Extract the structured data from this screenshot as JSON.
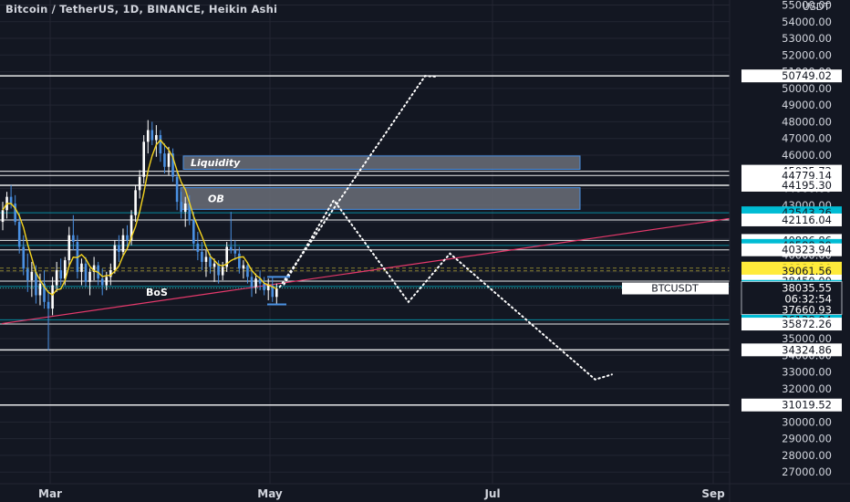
{
  "header": {
    "title": "Bitcoin / TetherUS, 1D, BINANCE, Heikin Ashi"
  },
  "colors": {
    "background": "#131722",
    "grid": "#232632",
    "text": "#d1d4dc",
    "candle_up": "#ffffff",
    "candle_down": "#4a90e2",
    "ma_line": "#f5d41f",
    "trendline": "#e5396b",
    "cyan_label": "#00bcd4",
    "yellow_label": "#ffeb3b",
    "zone": "#6b6e78"
  },
  "chart_data": {
    "type": "candlestick",
    "symbol": "BTCUSDT",
    "chart_style": "Heikin Ashi",
    "interval": "1D",
    "exchange": "BINANCE",
    "currency_label": "USDT",
    "y_axis": {
      "ticks": [
        55000,
        54000,
        53000,
        52000,
        51000,
        50000,
        49000,
        48000,
        47000,
        46000,
        45000,
        44000,
        43000,
        42000,
        41000,
        40000,
        39000,
        38000,
        37000,
        36000,
        35000,
        34000,
        33000,
        32000,
        31000,
        30000,
        29000,
        28000,
        27000
      ],
      "tick_labels": [
        "55000.00",
        "54000.00",
        "53000.00",
        "52000.00",
        "51000.00",
        "50000.00",
        "49000.00",
        "48000.00",
        "47000.00",
        "46000.00",
        "45000.00",
        "44000.00",
        "43000.00",
        "42000.00",
        "41000.00",
        "40000.00",
        "39000.00",
        "38000.00",
        "37000.00",
        "36000.00",
        "35000.00",
        "34000.00",
        "33000.00",
        "32000.00",
        "31000.00",
        "30000.00",
        "29000.00",
        "28000.00",
        "27000.00"
      ],
      "range": [
        26300,
        55300
      ]
    },
    "x_axis": {
      "tick_labels": [
        "Mar",
        "May",
        "Jul",
        "Sep"
      ]
    },
    "horizontal_levels": [
      {
        "value": 50749.02,
        "label": "50749.02",
        "style": "white"
      },
      {
        "value": 45035.72,
        "label": "45035.72",
        "style": "white"
      },
      {
        "value": 44779.14,
        "label": "44779.14",
        "style": "white"
      },
      {
        "value": 44195.3,
        "label": "44195.30",
        "style": "white"
      },
      {
        "value": 42543.26,
        "label": "42543.26",
        "style": "cyan"
      },
      {
        "value": 42116.04,
        "label": "42116.04",
        "style": "white"
      },
      {
        "value": 40886.86,
        "label": "40886.86",
        "style": "white"
      },
      {
        "value": 40588.39,
        "label": "40588.39",
        "style": "cyan"
      },
      {
        "value": 40323.94,
        "label": "40323.94",
        "style": "white"
      },
      {
        "value": 39224.19,
        "label": "39224.19",
        "style": "yellow"
      },
      {
        "value": 39061.56,
        "label": "39061.56",
        "style": "yellow"
      },
      {
        "value": 38450.0,
        "label": "38450.00",
        "style": "white"
      },
      {
        "value": 38132.58,
        "label": "38132.58",
        "style": "cyan"
      },
      {
        "value": 36128.84,
        "label": "36128.84",
        "style": "cyan"
      },
      {
        "value": 35872.26,
        "label": "35872.26",
        "style": "white"
      },
      {
        "value": 34324.86,
        "label": "34324.86",
        "style": "white"
      },
      {
        "value": 31019.52,
        "label": "31019.52",
        "style": "white"
      }
    ],
    "current_price": {
      "symbol": "BTCUSDT",
      "value": "38035.55",
      "countdown": "06:32:54"
    },
    "extra_labels": [
      "37660.93"
    ],
    "zones": [
      {
        "label": "Liquidity",
        "top": 45950,
        "bottom": 45150
      },
      {
        "label": "OB",
        "top": 44050,
        "bottom": 42750
      }
    ],
    "annotations": [
      "BoS"
    ],
    "projection_path": [
      {
        "day": 67,
        "price": 38100
      },
      {
        "day": 102,
        "price": 50750
      },
      {
        "day": 105,
        "price": 50700
      }
    ],
    "projection_path_2": [
      {
        "day": 68,
        "price": 38250
      },
      {
        "day": 80,
        "price": 43300
      },
      {
        "day": 98,
        "price": 37200
      },
      {
        "day": 108,
        "price": 40100
      },
      {
        "day": 143,
        "price": 32550
      },
      {
        "day": 147,
        "price": 32850
      }
    ],
    "trendline": [
      {
        "day": 0,
        "price": 35900
      },
      {
        "day": 192,
        "price": 42800
      }
    ],
    "candles_ohlc": [
      [
        42000,
        43200,
        41500,
        42700
      ],
      [
        42700,
        43800,
        42200,
        43500
      ],
      [
        43500,
        44200,
        42800,
        43100
      ],
      [
        43100,
        43600,
        41800,
        42000
      ],
      [
        42000,
        42500,
        40100,
        40500
      ],
      [
        40500,
        41200,
        38800,
        39200
      ],
      [
        39200,
        40100,
        37800,
        38500
      ],
      [
        38500,
        39600,
        37500,
        39000
      ],
      [
        39000,
        39400,
        37100,
        37600
      ],
      [
        37600,
        38900,
        37000,
        38300
      ],
      [
        38300,
        39100,
        36800,
        37200
      ],
      [
        37200,
        37900,
        34300,
        36800
      ],
      [
        36800,
        38700,
        36400,
        38200
      ],
      [
        38200,
        39600,
        37800,
        39100
      ],
      [
        39100,
        39800,
        38200,
        38600
      ],
      [
        38600,
        39900,
        38200,
        39700
      ],
      [
        39700,
        41700,
        39300,
        41200
      ],
      [
        41200,
        42400,
        40300,
        40800
      ],
      [
        40800,
        41200,
        38600,
        39000
      ],
      [
        39000,
        39800,
        38200,
        39500
      ],
      [
        39500,
        39900,
        38100,
        38400
      ],
      [
        38400,
        39200,
        37600,
        39000
      ],
      [
        39000,
        39900,
        38500,
        39400
      ],
      [
        39400,
        39600,
        38200,
        38600
      ],
      [
        38600,
        39200,
        37600,
        38200
      ],
      [
        38200,
        39000,
        37900,
        38700
      ],
      [
        38700,
        39500,
        38200,
        39100
      ],
      [
        39100,
        40900,
        38900,
        40600
      ],
      [
        40600,
        41200,
        39600,
        40200
      ],
      [
        40200,
        41600,
        40000,
        41200
      ],
      [
        41200,
        41800,
        40500,
        40900
      ],
      [
        40900,
        42700,
        40600,
        42400
      ],
      [
        42400,
        44200,
        42000,
        43900
      ],
      [
        43900,
        45100,
        43400,
        44700
      ],
      [
        44700,
        47200,
        44300,
        46800
      ],
      [
        46800,
        48100,
        46100,
        47500
      ],
      [
        47500,
        48000,
        46600,
        46900
      ],
      [
        46900,
        47800,
        45900,
        47200
      ],
      [
        47200,
        47500,
        45600,
        46100
      ],
      [
        46100,
        46700,
        44900,
        45300
      ],
      [
        45300,
        46500,
        44800,
        46100
      ],
      [
        46100,
        46400,
        44400,
        44700
      ],
      [
        44700,
        45100,
        42700,
        43200
      ],
      [
        43200,
        43800,
        42200,
        42600
      ],
      [
        42600,
        43500,
        41700,
        43100
      ],
      [
        43100,
        43600,
        41800,
        42100
      ],
      [
        42100,
        42600,
        40300,
        40700
      ],
      [
        40700,
        41400,
        39700,
        40200
      ],
      [
        40200,
        40800,
        39100,
        39600
      ],
      [
        39600,
        40300,
        38700,
        39900
      ],
      [
        39900,
        40100,
        38900,
        39300
      ],
      [
        39300,
        39800,
        38400,
        39500
      ],
      [
        39500,
        39700,
        38300,
        38800
      ],
      [
        38800,
        39600,
        38500,
        39300
      ],
      [
        39300,
        40800,
        39000,
        40500
      ],
      [
        40500,
        42600,
        40100,
        40300
      ],
      [
        40300,
        40900,
        39700,
        40100
      ],
      [
        40100,
        40500,
        38900,
        39200
      ],
      [
        39200,
        39700,
        38600,
        39400
      ],
      [
        39400,
        39600,
        38300,
        38700
      ],
      [
        38700,
        39200,
        37500,
        38100
      ],
      [
        38100,
        38900,
        37700,
        38600
      ],
      [
        38600,
        39100,
        37900,
        38300
      ],
      [
        38300,
        38700,
        37600,
        37900
      ],
      [
        37900,
        38600,
        37300,
        38200
      ],
      [
        38200,
        38700,
        37200,
        37500
      ],
      [
        37500,
        38300,
        37100,
        38000
      ]
    ]
  }
}
